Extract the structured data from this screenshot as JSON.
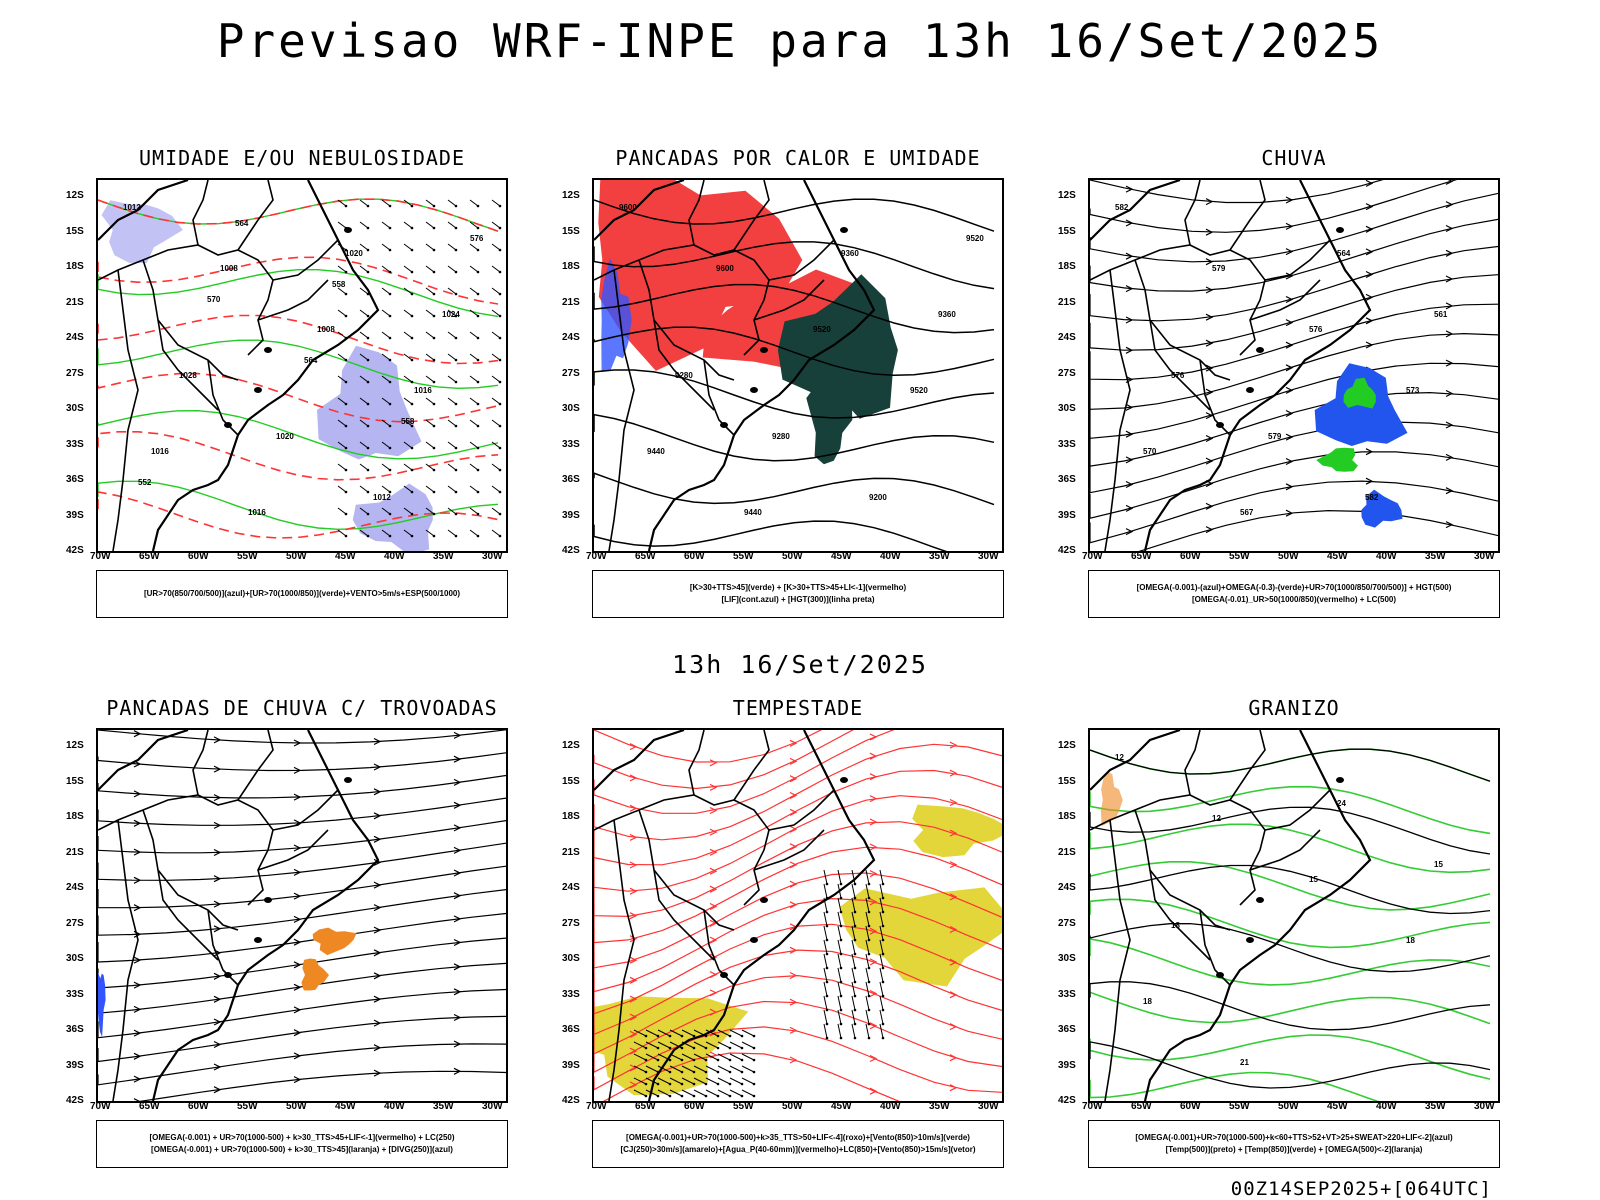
{
  "main_title": "Previsao WRF-INPE  para 13h 16/Set/2025",
  "mid_title": "13h 16/Set/2025",
  "footer": "00Z14SEP2025+[064UTC]",
  "lat_labels": [
    "12S",
    "15S",
    "18S",
    "21S",
    "24S",
    "27S",
    "30S",
    "33S",
    "36S",
    "39S",
    "42S"
  ],
  "lon_labels": [
    "70W",
    "65W",
    "60W",
    "55W",
    "50W",
    "45W",
    "40W",
    "35W",
    "30W"
  ],
  "colors": {
    "umidade_media": "#a8a8f0",
    "umidade_baixa": "#22cc22",
    "vento": "#000000",
    "espessura": "#ff3333",
    "pancadas_verde": "#17403a",
    "pancadas_vermelho": "#f24040",
    "lif_azul": "#3355ff",
    "chuva_azul": "#2255ee",
    "chuva_verde": "#22cc22",
    "tempestade_amarelo": "#e3d63a",
    "granizo_verde": "#33cc33",
    "laranja": "#ee8822"
  },
  "panels": [
    {
      "title": "UMIDADE E/OU NEBULOSIDADE",
      "legend": [
        "[UR>70(850/700/500)](azul)+[UR>70(1000/850)](verde)+VENTO>5m/s+ESP(500/1000)"
      ],
      "labels": [
        "1012",
        "1008",
        "1008",
        "1016",
        "1016",
        "1016",
        "1020",
        "1024",
        "1028",
        "1020",
        "1012",
        "576",
        "570",
        "564",
        "558",
        "552",
        "564",
        "558"
      ]
    },
    {
      "title": "PANCADAS POR CALOR E UMIDADE",
      "legend": [
        "[K>30+TTS>45](verde) + [K>30+TTS>45+LI<-1](vermelho)",
        "[LIF](cont.azul) + [HGT(300)](linha preta)"
      ],
      "labels": [
        "9600",
        "9600",
        "9520",
        "9520",
        "9440",
        "9440",
        "9360",
        "9360",
        "9280",
        "9280",
        "9200",
        "9520"
      ]
    },
    {
      "title": "CHUVA",
      "legend": [
        "[OMEGA(-0.001)-(azul)+OMEGA(-0.3)-(verde)+UR>70(1000/850/700/500)] + HGT(500)",
        "[OMEGA(-0.01)_UR>50(1000/850)(vermelho) + LC(500)"
      ],
      "labels": [
        "582",
        "579",
        "576",
        "573",
        "570",
        "567",
        "564",
        "561",
        "576",
        "579",
        "582"
      ]
    },
    {
      "title": "PANCADAS DE CHUVA C/ TROVOADAS",
      "legend": [
        "[OMEGA(-0.001) + UR>70(1000-500) + k>30_TTS>45+LIF<-1](vermelho) + LC(250)",
        "[OMEGA(-0.001) + UR>70(1000-500) + k>30_TTS>45](laranja) + [DIVG(250)](azul)"
      ],
      "labels": []
    },
    {
      "title": "TEMPESTADE",
      "legend": [
        "[OMEGA(-0.001)+UR>70(1000-500)+k>35_TTS>50+LIF<-4](roxo)+[Vento(850)>10m/s](verde)",
        "[CJ(250)>30m/s](amarelo)+[Agua_P(40-60mm)](vermelho)+LC(850)+[Vento(850)>15m/s](vetor)"
      ],
      "labels": []
    },
    {
      "title": "GRANIZO",
      "legend": [
        "[OMEGA(-0.001)+UR>70(1000-500)+k<60+TTS>52+VT>25+SWEAT>220+LIF<-2](azul)",
        "[Temp(500)](preto) + [Temp(850)](verde) + [OMEGA(500)<-2](laranja)"
      ],
      "labels": [
        "12",
        "12",
        "15",
        "18",
        "18",
        "21",
        "24",
        "15",
        "18"
      ]
    }
  ]
}
